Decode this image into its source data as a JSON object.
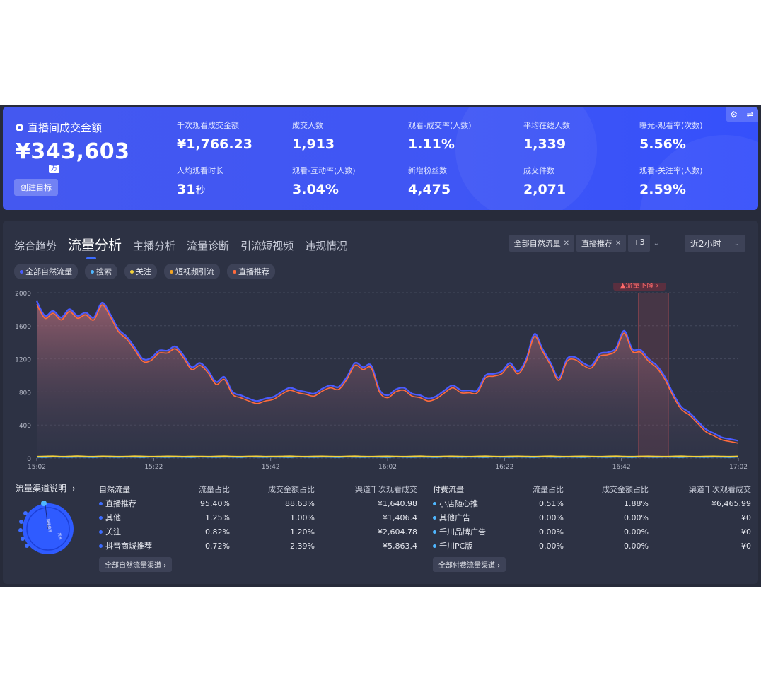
{
  "kpi": {
    "main_title": "直播间成交金额",
    "main_value": "¥343,603",
    "unit": "万",
    "goal_button": "创建目标",
    "metrics": [
      {
        "label": "千次观看成交金额",
        "value": "¥1,766.23"
      },
      {
        "label": "成交人数",
        "value": "1,913"
      },
      {
        "label": "观看-成交率(人数)",
        "value": "1.11%"
      },
      {
        "label": "平均在线人数",
        "value": "1,339"
      },
      {
        "label": "曝光-观看率(次数)",
        "value": "5.56%"
      },
      {
        "label": "人均观看时长",
        "value": "31",
        "unit": "秒"
      },
      {
        "label": "观看-互动率(人数)",
        "value": "3.04%"
      },
      {
        "label": "新增粉丝数",
        "value": "4,475"
      },
      {
        "label": "成交件数",
        "value": "2,071"
      },
      {
        "label": "观看-关注率(人数)",
        "value": "2.59%"
      }
    ],
    "gradient_colors": [
      "#4458f0",
      "#3550fb"
    ]
  },
  "tabs": [
    "综合趋势",
    "流量分析",
    "主播分析",
    "流量诊断",
    "引流短视频",
    "违规情况"
  ],
  "active_tab": 1,
  "filters": {
    "chips": [
      "全部自然流量",
      "直播推荐"
    ],
    "more": "+3",
    "time_range": "近2小时"
  },
  "legend": [
    {
      "label": "全部自然流量",
      "color": "#4a5bff"
    },
    {
      "label": "搜索",
      "color": "#4fb7ff"
    },
    {
      "label": "关注",
      "color": "#f5d33b"
    },
    {
      "label": "短视频引流",
      "color": "#f5a623"
    },
    {
      "label": "直播推荐",
      "color": "#ff6b3d"
    }
  ],
  "chart_data": {
    "type": "area",
    "x_ticks": [
      "15:02",
      "15:22",
      "15:42",
      "16:02",
      "16:22",
      "16:42",
      "17:02"
    ],
    "y_ticks": [
      0,
      400,
      800,
      1200,
      1600,
      2000
    ],
    "ylim": [
      0,
      2000
    ],
    "annotation": "流量下降",
    "annotation_range": [
      0.858,
      0.9
    ],
    "series": [
      {
        "name": "全部自然流量",
        "color": "#4a5bff",
        "values": [
          1900,
          1720,
          1780,
          1700,
          1800,
          1720,
          1760,
          1700,
          1880,
          1740,
          1560,
          1470,
          1340,
          1200,
          1210,
          1300,
          1300,
          1350,
          1240,
          1100,
          1150,
          1060,
          920,
          980,
          800,
          760,
          720,
          690,
          720,
          740,
          800,
          850,
          820,
          800,
          780,
          840,
          880,
          860,
          980,
          1150,
          1100,
          1120,
          830,
          760,
          830,
          850,
          780,
          760,
          720,
          750,
          820,
          880,
          820,
          820,
          820,
          1000,
          1020,
          1050,
          1150,
          1050,
          1200,
          1500,
          1320,
          1150,
          970,
          1200,
          1220,
          1150,
          1120,
          1260,
          1280,
          1330,
          1540,
          1320,
          1310,
          1200,
          1120,
          980,
          780,
          620,
          550,
          450,
          350,
          300,
          250,
          230,
          210
        ]
      },
      {
        "name": "直播推荐",
        "color": "#ff6b3d",
        "values": [
          1860,
          1690,
          1750,
          1670,
          1770,
          1690,
          1730,
          1670,
          1850,
          1710,
          1530,
          1440,
          1310,
          1170,
          1180,
          1270,
          1270,
          1320,
          1210,
          1070,
          1120,
          1030,
          890,
          950,
          770,
          730,
          690,
          660,
          690,
          710,
          770,
          820,
          790,
          770,
          750,
          810,
          850,
          830,
          950,
          1120,
          1070,
          1090,
          800,
          730,
          800,
          820,
          750,
          730,
          690,
          720,
          790,
          850,
          790,
          790,
          790,
          970,
          990,
          1020,
          1120,
          1020,
          1170,
          1470,
          1290,
          1120,
          940,
          1170,
          1190,
          1120,
          1090,
          1230,
          1250,
          1300,
          1510,
          1290,
          1280,
          1170,
          1090,
          950,
          750,
          590,
          520,
          420,
          320,
          270,
          220,
          200,
          180
        ]
      },
      {
        "name": "关注",
        "color": "#f5d33b",
        "values": [
          20,
          22,
          24,
          20,
          22,
          25,
          21,
          20,
          23,
          22,
          20,
          21,
          24,
          22,
          20,
          21,
          23,
          22,
          20,
          22,
          21,
          20,
          22,
          24,
          21,
          20,
          22,
          23,
          20,
          21,
          22,
          24,
          21,
          20,
          22,
          23,
          21,
          20,
          22,
          24,
          21,
          20,
          22,
          23,
          21,
          20,
          22,
          24,
          21,
          20,
          22,
          23,
          21,
          20,
          22,
          24,
          21,
          20,
          22,
          23,
          21,
          20,
          22,
          24,
          21,
          20,
          22,
          23,
          21,
          20,
          22,
          24,
          21,
          20,
          22,
          23,
          21,
          20,
          22,
          24,
          21,
          20,
          22,
          23,
          21,
          20,
          22
        ]
      },
      {
        "name": "搜索",
        "color": "#4fb7ff",
        "values": [
          12,
          10,
          14,
          12,
          11,
          13,
          12,
          10,
          14,
          12,
          11,
          13,
          12,
          10,
          14,
          12,
          11,
          13,
          12,
          10,
          14,
          12,
          11,
          13,
          12,
          10,
          14,
          12,
          11,
          13,
          12,
          10,
          14,
          12,
          11,
          13,
          12,
          10,
          14,
          12,
          11,
          13,
          12,
          10,
          14,
          12,
          11,
          13,
          12,
          10,
          14,
          12,
          11,
          13,
          12,
          10,
          14,
          12,
          11,
          13,
          12,
          10,
          14,
          12,
          11,
          13,
          12,
          10,
          14,
          12,
          11,
          13,
          12,
          10,
          14,
          12,
          11,
          13,
          12,
          10,
          14,
          12,
          11,
          13,
          12,
          10,
          14
        ]
      }
    ]
  },
  "channel_title": "流量渠道说明",
  "pie_labels": [
    "直播推荐",
    "其他"
  ],
  "natural": {
    "headers": [
      "自然流量",
      "流量占比",
      "成交金额占比",
      "渠道千次观看成交"
    ],
    "rows": [
      {
        "name": "直播推荐",
        "color": "#3d6cff",
        "share": "95.40%",
        "gmv_share": "88.63%",
        "gpm": "¥1,640.98"
      },
      {
        "name": "其他",
        "color": "#3d6cff",
        "share": "1.25%",
        "gmv_share": "1.00%",
        "gpm": "¥1,406.4"
      },
      {
        "name": "关注",
        "color": "#3d6cff",
        "share": "0.82%",
        "gmv_share": "1.20%",
        "gpm": "¥2,604.78"
      },
      {
        "name": "抖音商城推荐",
        "color": "#3d6cff",
        "share": "0.72%",
        "gmv_share": "2.39%",
        "gpm": "¥5,863.4"
      }
    ],
    "more": "全部自然流量渠道"
  },
  "paid": {
    "headers": [
      "付费流量",
      "流量占比",
      "成交金额占比",
      "渠道千次观看成交"
    ],
    "rows": [
      {
        "name": "小店随心推",
        "color": "#4fb7ff",
        "share": "0.51%",
        "gmv_share": "1.88%",
        "gpm": "¥6,465.99"
      },
      {
        "name": "其他广告",
        "color": "#4fb7ff",
        "share": "0.00%",
        "gmv_share": "0.00%",
        "gpm": "¥0"
      },
      {
        "name": "千川品牌广告",
        "color": "#4fb7ff",
        "share": "0.00%",
        "gmv_share": "0.00%",
        "gpm": "¥0"
      },
      {
        "name": "千川PC版",
        "color": "#4fb7ff",
        "share": "0.00%",
        "gmv_share": "0.00%",
        "gpm": "¥0"
      }
    ],
    "more": "全部付费流量渠道"
  }
}
